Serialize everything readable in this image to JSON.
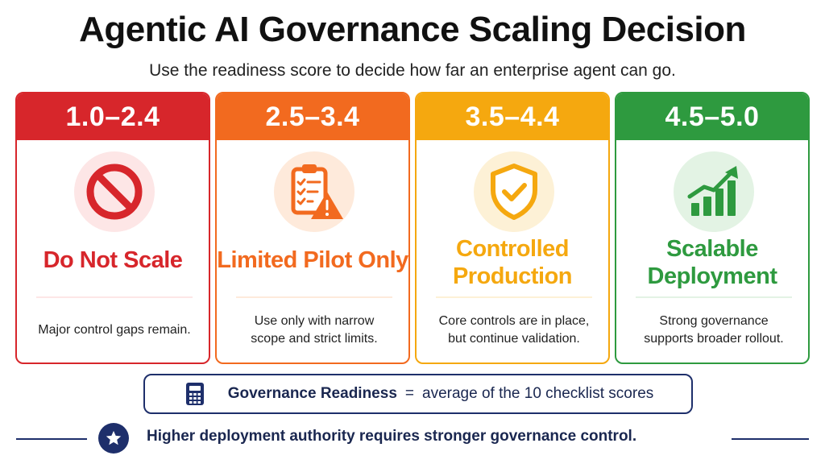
{
  "title": "Agentic AI Governance Scaling Decision",
  "subtitle": "Use the readiness score to decide how far an enterprise agent can go.",
  "cards": [
    {
      "range": "1.0–2.4",
      "label_lines": [
        "Do Not Scale"
      ],
      "description_lines": [
        "Major control gaps remain."
      ],
      "icon": "prohibited-icon",
      "color": "#d7262b",
      "tint": "#fde6e6"
    },
    {
      "range": "2.5–3.4",
      "label_lines": [
        "Limited Pilot Only"
      ],
      "description_lines": [
        "Use only with narrow",
        "scope and strict limits."
      ],
      "icon": "clipboard-warning-icon",
      "color": "#f26a1f",
      "tint": "#feeadb"
    },
    {
      "range": "3.5–4.4",
      "label_lines": [
        "Controlled",
        "Production"
      ],
      "description_lines": [
        "Core controls are in place,",
        "but continue validation."
      ],
      "icon": "shield-check-icon",
      "color": "#f5a80f",
      "tint": "#fdf1d6"
    },
    {
      "range": "4.5–5.0",
      "label_lines": [
        "Scalable",
        "Deployment"
      ],
      "description_lines": [
        "Strong governance",
        "supports broader rollout."
      ],
      "icon": "growth-chart-icon",
      "color": "#2e9a3f",
      "tint": "#e3f3e4"
    }
  ],
  "formula": {
    "icon": "calculator-icon",
    "term": "Governance Readiness",
    "equals": "=",
    "definition": "average of the 10 checklist scores"
  },
  "footer": {
    "icon": "star-icon",
    "text": "Higher deployment authority requires stronger governance control."
  }
}
